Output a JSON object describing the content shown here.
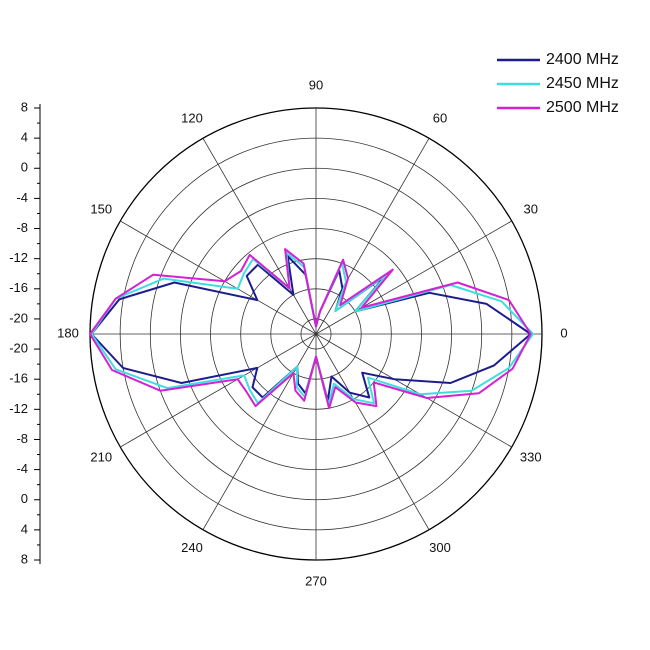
{
  "chart_data": {
    "type": "polar",
    "legend": "top-right",
    "rlim": [
      -22,
      8
    ],
    "rticks": [
      -20,
      -16,
      -12,
      -8,
      -4,
      0,
      4,
      8
    ],
    "thetaticks": [
      0,
      30,
      60,
      90,
      120,
      150,
      180,
      210,
      240,
      270,
      300,
      330
    ],
    "grid": true,
    "theta": [
      0,
      10,
      20,
      30,
      40,
      50,
      60,
      70,
      80,
      90,
      100,
      110,
      120,
      130,
      140,
      150,
      160,
      170,
      180,
      190,
      200,
      210,
      220,
      230,
      240,
      250,
      260,
      270,
      280,
      290,
      300,
      310,
      320,
      330,
      340,
      350
    ],
    "series": [
      {
        "name": "2400 MHz",
        "color": "#1c1c8f",
        "values": [
          6.5,
          1,
          -6,
          -16,
          -10,
          -18,
          -15,
          -13,
          -19,
          -21,
          -14,
          -11,
          -16,
          -10,
          -10,
          -13,
          -2,
          4.5,
          7.8,
          4,
          -3,
          -13,
          -11,
          -11,
          -17,
          -15,
          -14,
          -19,
          -13,
          -16,
          -13,
          -11,
          -14,
          -10,
          -3,
          2
        ]
      },
      {
        "name": "2450 MHz",
        "color": "#3fdede",
        "values": [
          6.8,
          3,
          -3,
          -16,
          -9.5,
          -18,
          -14,
          -12,
          -19,
          -21,
          -13,
          -10.5,
          -15,
          -9,
          -9.5,
          -10,
          -0.5,
          5,
          7.8,
          5,
          -1,
          -11,
          -10.5,
          -10,
          -17,
          -14.5,
          -13.5,
          -19,
          -12.5,
          -15,
          -12,
          -10,
          -13,
          -6,
          0,
          4
        ]
      },
      {
        "name": "2500 MHz",
        "color": "#d421d4",
        "values": [
          6.5,
          4,
          -2,
          -15,
          -8.7,
          -17,
          -13.5,
          -11.5,
          -19,
          -21,
          -12.5,
          -10,
          -15,
          -8.3,
          -9,
          -8,
          1,
          5,
          8,
          5.5,
          0,
          -10,
          -10,
          -9.5,
          -16,
          -14,
          -13,
          -19,
          -12,
          -14.5,
          -11.5,
          -9.5,
          -12,
          -5,
          1,
          4.5
        ]
      }
    ]
  }
}
